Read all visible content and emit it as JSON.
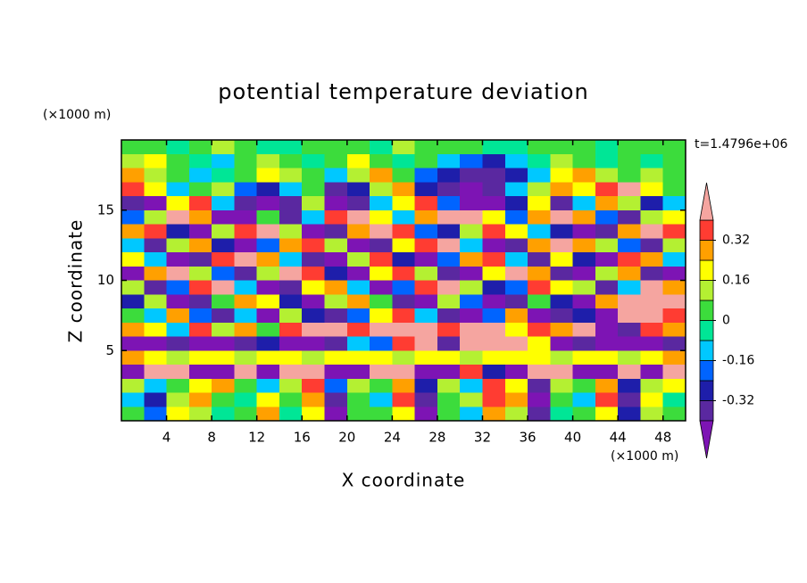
{
  "chart_data": {
    "type": "contour",
    "title": "potential temperature deviation",
    "x_label": "X coordinate",
    "y_label": "Z coordinate",
    "x_unit": "(×1000 m)",
    "y_unit": "(×1000 m)",
    "annotation": "t=1.4796e+06",
    "xlim": [
      0,
      50
    ],
    "ylim": [
      0,
      20
    ],
    "xticks": [
      4,
      8,
      12,
      16,
      20,
      24,
      28,
      32,
      36,
      40,
      44,
      48
    ],
    "yticks": [
      5,
      10,
      15
    ],
    "levels": [
      -0.4,
      -0.32,
      -0.24,
      -0.16,
      -0.08,
      0,
      0.08,
      0.16,
      0.24,
      0.32,
      0.4
    ],
    "colors": [
      "#7d14b4",
      "#5a28a0",
      "#1e1eaa",
      "#0064ff",
      "#00c8ff",
      "#00e696",
      "#3cdc3c",
      "#b4f032",
      "#ffff00",
      "#ffa000",
      "#ff3c32",
      "#f5a5a0"
    ],
    "colorbar_ticks": [
      -0.32,
      -0.16,
      0,
      0.16,
      0.32
    ],
    "x": [
      1,
      3,
      5,
      7,
      9,
      11,
      13,
      15,
      17,
      19,
      21,
      23,
      25,
      27,
      29,
      31,
      33,
      35,
      37,
      39,
      41,
      43,
      45,
      47,
      49
    ],
    "y": [
      19.5,
      18.5,
      17.5,
      16.5,
      15.5,
      14.5,
      13.5,
      12.5,
      11.5,
      10.5,
      9.5,
      8.5,
      7.5,
      6.5,
      5.5,
      4.5,
      3.5,
      2.5,
      1.5,
      0.5
    ],
    "z": [
      [
        0.04,
        0.04,
        -0.04,
        0.04,
        0.12,
        0.04,
        -0.04,
        -0.04,
        0.04,
        0.04,
        0.04,
        -0.04,
        0.12,
        0.04,
        0.04,
        0.04,
        -0.04,
        -0.04,
        0.04,
        0.04,
        0.04,
        -0.04,
        0.04,
        0.04,
        0.04
      ],
      [
        0.12,
        0.2,
        0.04,
        -0.04,
        -0.12,
        0.04,
        0.12,
        0.04,
        -0.04,
        0.04,
        0.2,
        0.04,
        -0.04,
        0.04,
        -0.12,
        -0.2,
        -0.28,
        -0.12,
        -0.04,
        0.12,
        0.04,
        -0.04,
        0.04,
        -0.04,
        0.04
      ],
      [
        0.28,
        0.12,
        0.04,
        -0.12,
        -0.04,
        0.04,
        0.2,
        0.12,
        0.04,
        -0.12,
        0.12,
        0.28,
        0.04,
        -0.2,
        -0.28,
        -0.36,
        -0.36,
        -0.28,
        -0.12,
        0.2,
        0.28,
        0.12,
        0.04,
        0.12,
        0.04
      ],
      [
        0.36,
        0.2,
        -0.12,
        0.04,
        0.12,
        -0.2,
        -0.28,
        -0.12,
        0.04,
        -0.36,
        -0.28,
        0.12,
        0.28,
        -0.28,
        -0.36,
        -0.45,
        -0.36,
        -0.12,
        0.12,
        0.28,
        0.2,
        0.36,
        0.45,
        0.2,
        0.04
      ],
      [
        -0.36,
        -0.45,
        0.2,
        0.36,
        -0.12,
        -0.36,
        -0.45,
        -0.36,
        0.12,
        -0.45,
        -0.36,
        -0.12,
        0.2,
        0.36,
        -0.2,
        -0.45,
        -0.45,
        -0.28,
        0.2,
        -0.36,
        -0.12,
        0.28,
        0.12,
        -0.28,
        -0.12
      ],
      [
        -0.2,
        0.12,
        0.45,
        0.28,
        -0.45,
        -0.45,
        0.04,
        -0.36,
        -0.12,
        0.36,
        0.45,
        0.2,
        -0.12,
        0.28,
        0.45,
        0.45,
        0.2,
        -0.2,
        0.28,
        0.45,
        0.28,
        -0.2,
        -0.36,
        0.12,
        0.2
      ],
      [
        0.28,
        0.36,
        -0.28,
        -0.45,
        0.12,
        0.36,
        0.45,
        0.12,
        -0.45,
        -0.36,
        0.28,
        0.45,
        0.36,
        -0.2,
        -0.28,
        0.12,
        0.36,
        0.2,
        -0.12,
        -0.28,
        -0.45,
        -0.36,
        0.28,
        0.45,
        0.36
      ],
      [
        -0.12,
        -0.36,
        0.12,
        0.28,
        -0.28,
        -0.45,
        -0.2,
        0.28,
        0.36,
        0.12,
        -0.45,
        -0.36,
        0.2,
        0.36,
        0.45,
        -0.12,
        -0.45,
        -0.36,
        0.28,
        0.45,
        0.28,
        0.12,
        -0.2,
        -0.36,
        0.12
      ],
      [
        0.2,
        -0.12,
        -0.45,
        -0.36,
        0.36,
        0.45,
        0.28,
        -0.12,
        -0.36,
        -0.45,
        0.12,
        0.36,
        -0.28,
        -0.45,
        -0.2,
        0.28,
        0.36,
        -0.12,
        -0.36,
        0.2,
        -0.28,
        -0.45,
        0.36,
        0.28,
        -0.12
      ],
      [
        -0.45,
        0.28,
        0.45,
        0.12,
        -0.2,
        -0.36,
        0.12,
        0.45,
        0.36,
        -0.28,
        -0.45,
        0.2,
        0.36,
        0.12,
        -0.36,
        -0.45,
        0.2,
        0.45,
        0.28,
        -0.36,
        -0.45,
        0.12,
        0.28,
        -0.36,
        -0.45
      ],
      [
        0.12,
        -0.36,
        -0.2,
        0.36,
        0.45,
        -0.12,
        -0.45,
        -0.36,
        0.2,
        0.28,
        -0.12,
        -0.45,
        -0.2,
        0.36,
        0.45,
        0.12,
        -0.28,
        -0.2,
        0.36,
        0.2,
        0.12,
        -0.36,
        -0.12,
        0.45,
        0.28
      ],
      [
        -0.28,
        0.12,
        -0.45,
        -0.36,
        0.04,
        0.28,
        0.2,
        -0.28,
        -0.45,
        0.12,
        0.28,
        0.04,
        -0.36,
        -0.45,
        0.12,
        -0.2,
        -0.45,
        -0.36,
        0.04,
        -0.28,
        -0.45,
        0.28,
        0.45,
        0.45,
        0.45
      ],
      [
        0.04,
        -0.12,
        0.28,
        -0.2,
        -0.36,
        -0.12,
        -0.45,
        0.12,
        -0.28,
        -0.36,
        -0.2,
        0.2,
        0.36,
        -0.12,
        -0.36,
        -0.45,
        -0.2,
        0.28,
        -0.45,
        -0.36,
        -0.28,
        -0.45,
        0.45,
        0.45,
        0.36
      ],
      [
        0.28,
        0.2,
        -0.12,
        0.36,
        0.12,
        0.28,
        0.04,
        0.36,
        0.45,
        0.45,
        0.36,
        0.45,
        0.45,
        0.45,
        0.36,
        0.45,
        0.45,
        0.2,
        0.36,
        0.28,
        0.45,
        -0.45,
        -0.36,
        0.36,
        0.28
      ],
      [
        -0.45,
        -0.45,
        -0.36,
        -0.45,
        -0.45,
        -0.36,
        -0.28,
        -0.45,
        -0.45,
        -0.36,
        -0.12,
        -0.2,
        0.36,
        0.45,
        -0.36,
        0.45,
        0.45,
        0.45,
        0.2,
        -0.45,
        -0.36,
        -0.45,
        -0.45,
        -0.45,
        -0.36
      ],
      [
        0.28,
        0.2,
        0.12,
        0.2,
        0.2,
        0.12,
        0.2,
        0.2,
        0.12,
        0.2,
        0.2,
        0.2,
        0.12,
        0.2,
        0.2,
        0.12,
        0.2,
        0.2,
        0.2,
        0.12,
        0.2,
        0.2,
        0.12,
        0.2,
        0.28
      ],
      [
        -0.45,
        0.45,
        0.45,
        -0.45,
        -0.45,
        0.45,
        -0.45,
        0.45,
        0.45,
        -0.45,
        -0.45,
        0.45,
        0.45,
        -0.45,
        -0.45,
        0.36,
        -0.28,
        -0.45,
        0.45,
        0.45,
        -0.45,
        -0.45,
        0.45,
        -0.45,
        0.45
      ],
      [
        0.12,
        -0.12,
        0.04,
        0.2,
        0.28,
        0.04,
        -0.12,
        0.12,
        0.36,
        -0.2,
        0.12,
        0.04,
        0.28,
        -0.28,
        0.12,
        -0.12,
        0.36,
        0.2,
        -0.36,
        0.12,
        0.04,
        0.28,
        -0.28,
        0.12,
        0.2
      ],
      [
        -0.12,
        -0.28,
        0.12,
        0.28,
        0.04,
        -0.04,
        0.2,
        0.04,
        0.28,
        -0.36,
        0.04,
        -0.12,
        0.36,
        -0.36,
        0.04,
        0.12,
        0.36,
        0.28,
        -0.45,
        0.04,
        -0.12,
        0.36,
        -0.36,
        0.2,
        -0.04
      ],
      [
        0.04,
        -0.2,
        0.2,
        0.12,
        -0.04,
        0.04,
        0.28,
        -0.04,
        0.2,
        -0.45,
        0.04,
        0.04,
        0.2,
        -0.45,
        0.04,
        -0.12,
        0.28,
        0.12,
        -0.36,
        -0.04,
        0.04,
        0.2,
        -0.28,
        0.12,
        0.04
      ]
    ]
  }
}
